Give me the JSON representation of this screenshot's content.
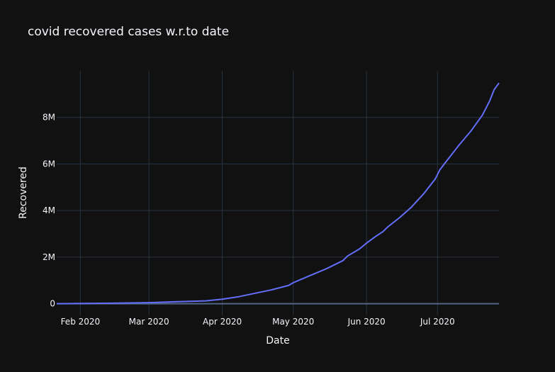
{
  "chart_data": {
    "type": "line",
    "title": "covid recovered cases w.r.to date",
    "xlabel": "Date",
    "ylabel": "Recovered",
    "grid": true,
    "xlim": [
      "2020-01-22",
      "2020-07-27"
    ],
    "ylim": [
      -500000,
      10000000
    ],
    "x_ticks": [
      {
        "date": "2020-02-01",
        "label": "Feb 2020"
      },
      {
        "date": "2020-03-01",
        "label": "Mar 2020"
      },
      {
        "date": "2020-04-01",
        "label": "Apr 2020"
      },
      {
        "date": "2020-05-01",
        "label": "May 2020"
      },
      {
        "date": "2020-06-01",
        "label": "Jun 2020"
      },
      {
        "date": "2020-07-01",
        "label": "Jul 2020"
      }
    ],
    "y_ticks": [
      {
        "value": 0,
        "label": "0"
      },
      {
        "value": 2000000,
        "label": "2M"
      },
      {
        "value": 4000000,
        "label": "4M"
      },
      {
        "value": 6000000,
        "label": "6M"
      },
      {
        "value": 8000000,
        "label": "8M"
      }
    ],
    "line_color": "#636efa",
    "series": [
      {
        "x": [
          "2020-01-22",
          "2020-02-01",
          "2020-02-15",
          "2020-03-01",
          "2020-03-15",
          "2020-03-25",
          "2020-04-01",
          "2020-04-08",
          "2020-04-15",
          "2020-04-22",
          "2020-04-29",
          "2020-05-01",
          "2020-05-08",
          "2020-05-15",
          "2020-05-22",
          "2020-05-24",
          "2020-05-29",
          "2020-06-01",
          "2020-06-05",
          "2020-06-08",
          "2020-06-10",
          "2020-06-15",
          "2020-06-20",
          "2020-06-25",
          "2020-06-30",
          "2020-07-02",
          "2020-07-05",
          "2020-07-10",
          "2020-07-15",
          "2020-07-20",
          "2020-07-23",
          "2020-07-25",
          "2020-07-27"
        ],
        "y": [
          30,
          10000,
          20000,
          45000,
          90000,
          120000,
          190000,
          300000,
          450000,
          600000,
          780000,
          900000,
          1200000,
          1500000,
          1850000,
          2050000,
          2350000,
          2600000,
          2900000,
          3100000,
          3300000,
          3700000,
          4150000,
          4700000,
          5350000,
          5750000,
          6150000,
          6800000,
          7400000,
          8100000,
          8700000,
          9200000,
          9480000
        ]
      }
    ]
  }
}
